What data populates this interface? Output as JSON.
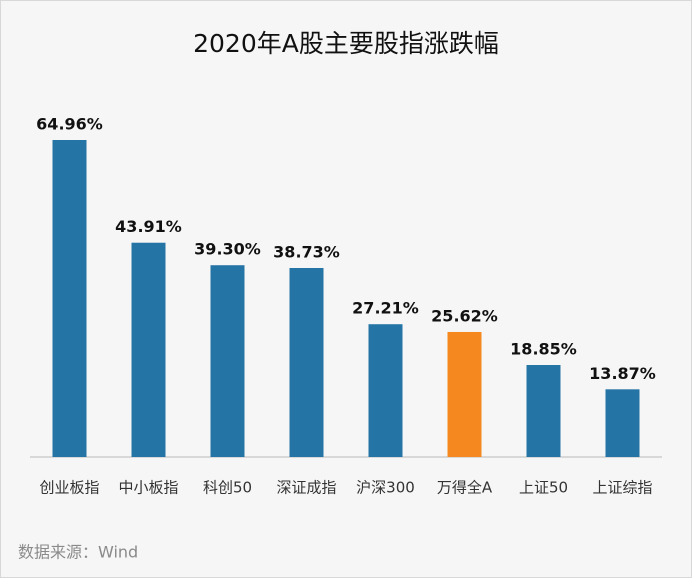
{
  "chart_data": {
    "type": "bar",
    "title": "2020年A股主要股指涨跌幅",
    "categories": [
      "创业板指",
      "中小板指",
      "科创50",
      "深证成指",
      "沪深300",
      "万得全A",
      "上证50",
      "上证综指"
    ],
    "values": [
      64.96,
      43.91,
      39.3,
      38.73,
      27.21,
      25.62,
      18.85,
      13.87
    ],
    "value_labels": [
      "64.96%",
      "43.91%",
      "39.30%",
      "38.73%",
      "27.21%",
      "25.62%",
      "18.85%",
      "13.87%"
    ],
    "colors": [
      "#2474a6",
      "#2474a6",
      "#2474a6",
      "#2474a6",
      "#2474a6",
      "#f5891f",
      "#2474a6",
      "#2474a6"
    ],
    "source": "数据来源：Wind"
  }
}
